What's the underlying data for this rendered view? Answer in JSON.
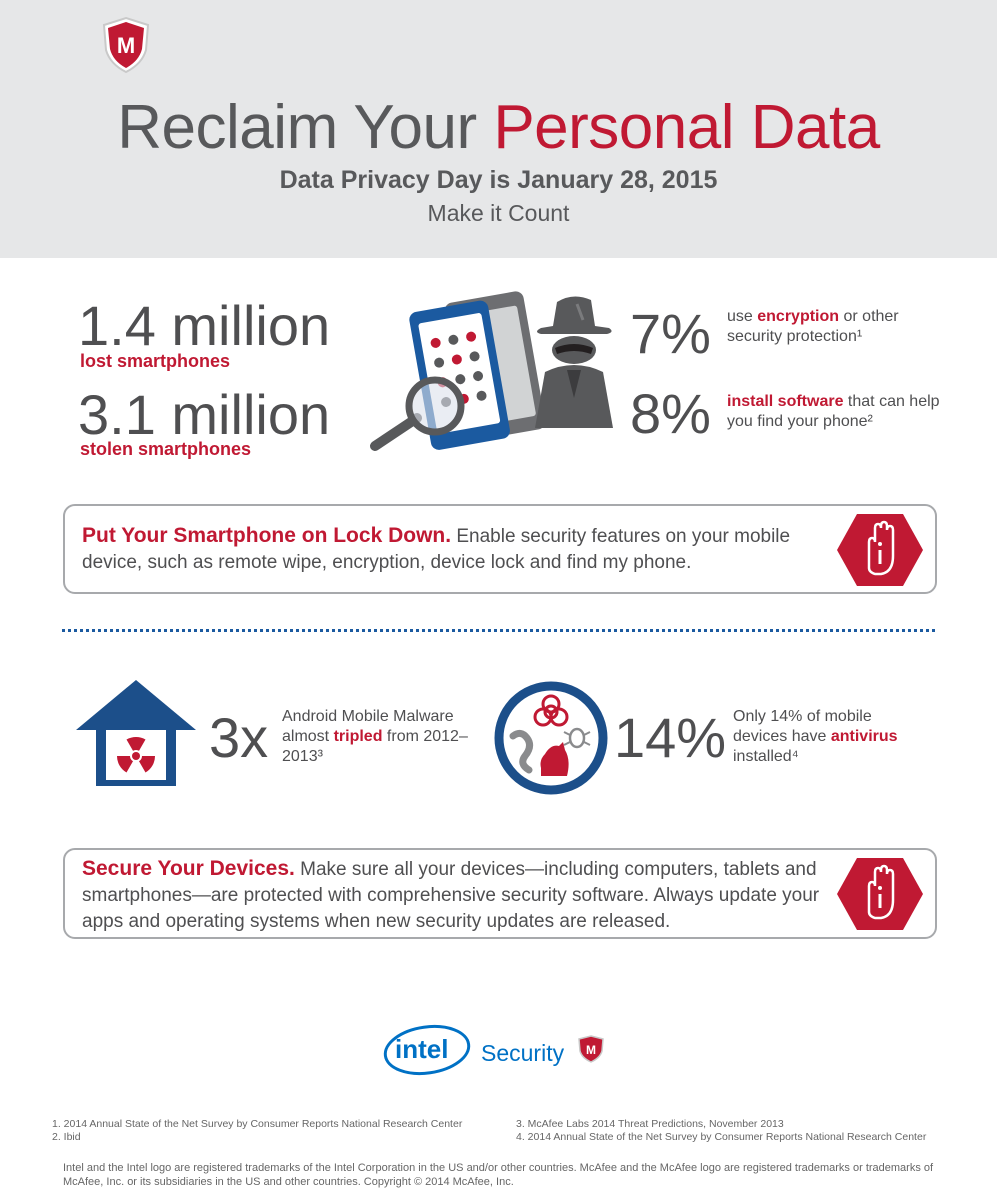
{
  "header": {
    "title_part1": "Reclaim Your ",
    "title_part2": "Personal Data",
    "subtitle": "Data Privacy Day is January 28, 2015",
    "tagline": "Make it Count"
  },
  "stats_phones": {
    "lost_value": "1.4 million",
    "lost_label": "lost smartphones",
    "stolen_value": "3.1 million",
    "stolen_label": "stolen smartphones",
    "encryption_pct": "7%",
    "encryption_pre": "use ",
    "encryption_bold": "encryption",
    "encryption_post": " or other security protection¹",
    "software_pct": "8%",
    "software_bold": "install software",
    "software_post": " that can help you find your phone²"
  },
  "tip1": {
    "lead": "Put Your Smartphone on Lock Down.",
    "body": " Enable security features on your mobile device, such as remote wipe, encryption, device lock and find my phone."
  },
  "stats_malware": {
    "multiplier": "3x",
    "malware_pre": "Android Mobile Malware almost ",
    "malware_bold": "tripled",
    "malware_post": " from 2012– 2013³",
    "antivirus_pct": "14%",
    "antivirus_pre": "Only 14% of mobile devices have ",
    "antivirus_bold": "antivirus",
    "antivirus_post": " installed⁴"
  },
  "tip2": {
    "lead": "Secure Your Devices.",
    "body": " Make sure all your devices—including computers, tablets and smartphones—are protected with comprehensive security software. Always update your apps and operating systems when new security updates are released."
  },
  "brand": {
    "intel": "intel",
    "security": "Security",
    "shield_letter": "M"
  },
  "footnotes": {
    "n1": "1. 2014 Annual State of the Net Survey by Consumer Reports National Research Center",
    "n2": "2. Ibid",
    "n3": "3. McAfee Labs 2014 Threat Predictions, November 2013",
    "n4": "4. 2014 Annual State of the Net Survey by Consumer Reports National Research Center",
    "legal": "Intel and the Intel logo are registered trademarks of the Intel Corporation in the US and/or other countries. McAfee and the McAfee logo are registered trademarks or trademarks of McAfee, Inc. or its subsidiaries in the US and other countries. Copyright © 2014 McAfee, Inc."
  },
  "colors": {
    "accent_red": "#c01933",
    "intel_blue": "#0071c5",
    "navy": "#1c4f8a",
    "gray_text": "#58595b",
    "header_bg": "#e6e7e8"
  }
}
